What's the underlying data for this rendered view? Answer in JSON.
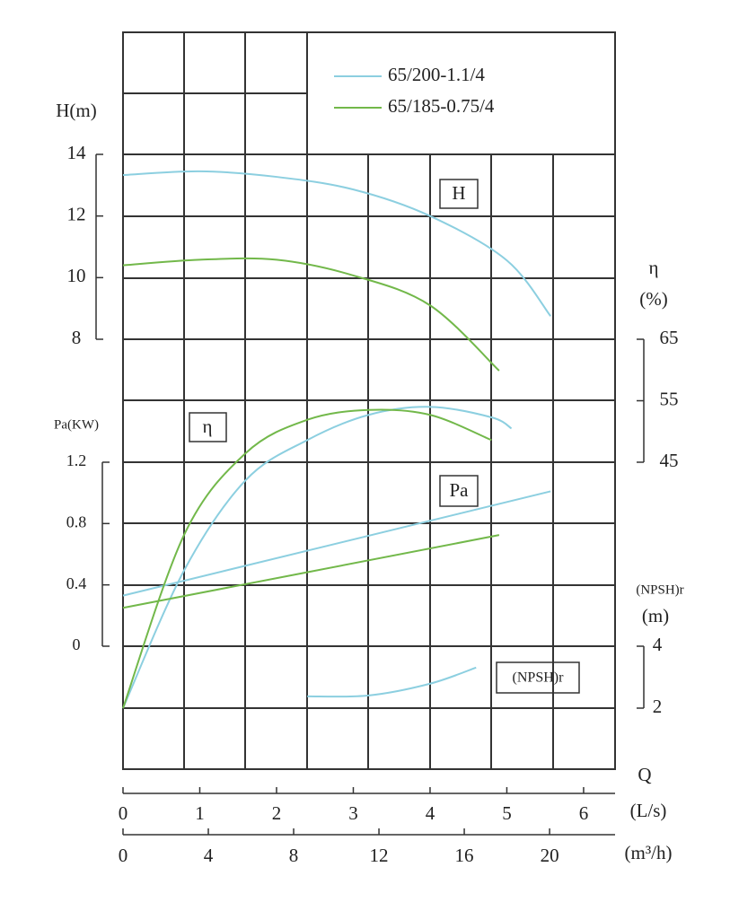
{
  "chart_data": {
    "type": "line",
    "x_title": "Q",
    "x_axes": [
      {
        "unit": "(L/s)",
        "lim": [
          0,
          6.41
        ],
        "ticks": [
          0,
          1,
          2,
          3,
          4,
          5,
          6
        ]
      },
      {
        "unit": "(m³/h)",
        "lim": [
          0,
          23.07
        ],
        "ticks": [
          0,
          4,
          8,
          12,
          16,
          20
        ]
      }
    ],
    "y_axes": {
      "H": {
        "label": "H(m)",
        "lim": [
          8,
          14
        ],
        "ticks": [
          8,
          10,
          12,
          14
        ]
      },
      "eta": {
        "label": "η",
        "unit": "(%)",
        "lim": [
          45,
          65
        ],
        "ticks": [
          45,
          55,
          65
        ]
      },
      "Pa": {
        "label": "Pa(KW)",
        "lim": [
          0,
          1.2
        ],
        "ticks": [
          0,
          0.4,
          0.8,
          1.2
        ]
      },
      "NPSH": {
        "label": "(NPSH)r",
        "unit": "(m)",
        "lim": [
          2,
          4
        ],
        "ticks": [
          2,
          4
        ]
      }
    },
    "curve_labels": {
      "H": "H",
      "eta": "η",
      "Pa": "Pa",
      "NPSH": "(NPSH)r"
    },
    "pumps": [
      {
        "name": "65/200-1.1/4",
        "color": "#8ccfe0",
        "curves": {
          "H": {
            "x": [
              0,
              1,
              2,
              3,
              4,
              5,
              5.57
            ],
            "values": [
              13.33,
              13.45,
              13.27,
              12.86,
              12.0,
              10.56,
              8.75
            ]
          },
          "eta": {
            "x": [
              0,
              0.8,
              1.6,
              2.4,
              3.2,
              4.0,
              4.8,
              5.06
            ],
            "values": [
              5,
              27.5,
              42.1,
              48.6,
              52.7,
              54.0,
              52.3,
              50.5
            ]
          },
          "Pa": {
            "x": [
              0,
              5.57
            ],
            "values": [
              0.33,
              1.01
            ]
          },
          "NPSH": {
            "x": [
              2.4,
              3.2,
              4.0,
              4.6
            ],
            "values": [
              2.38,
              2.41,
              2.79,
              3.31
            ]
          }
        }
      },
      {
        "name": "65/185-0.75/4",
        "color": "#72b84a",
        "curves": {
          "H": {
            "x": [
              0,
              1,
              2,
              3,
              4,
              4.9
            ],
            "values": [
              10.4,
              10.58,
              10.58,
              10.07,
              9.1,
              6.98
            ]
          },
          "eta": {
            "x": [
              0,
              0.8,
              1.6,
              2.4,
              3.2,
              4.0,
              4.8
            ],
            "values": [
              5,
              33.3,
              46.5,
              51.9,
              53.5,
              52.7,
              48.6
            ]
          },
          "Pa": {
            "x": [
              0,
              4.9
            ],
            "values": [
              0.25,
              0.725
            ]
          }
        }
      }
    ]
  }
}
